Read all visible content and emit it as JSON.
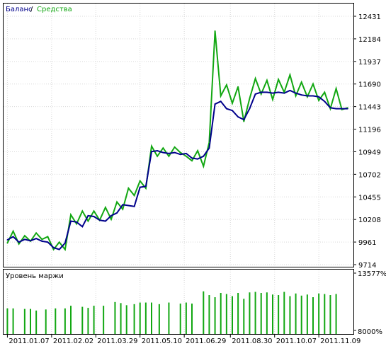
{
  "legend": {
    "balance": "Баланс",
    "separator": "/",
    "equity": "Средства"
  },
  "colors": {
    "balance": "#00008b",
    "equity": "#12a712",
    "margin": "#12a712",
    "grid": "#d9d9d9",
    "frame": "#000000",
    "background": "#ffffff"
  },
  "chart_data": [
    {
      "type": "line",
      "title": "",
      "series": [
        {
          "name": "Баланс",
          "x": [
            2,
            5,
            8,
            11,
            14,
            17,
            20,
            23,
            26,
            29,
            32,
            35,
            38,
            41,
            44,
            47,
            50,
            53,
            56,
            59,
            62,
            65,
            68,
            71,
            74,
            77,
            80,
            83,
            86,
            89,
            92,
            95,
            98,
            101,
            104,
            107,
            110,
            113,
            116,
            119,
            122,
            125,
            128,
            131,
            134,
            137,
            140,
            143,
            146,
            149,
            152,
            155,
            158,
            161,
            164,
            167,
            170,
            173,
            176,
            179
          ],
          "y": [
            9985,
            10020,
            9960,
            9990,
            9975,
            10000,
            9970,
            9960,
            9900,
            9880,
            9950,
            10190,
            10180,
            10130,
            10250,
            10240,
            10200,
            10190,
            10250,
            10280,
            10370,
            10360,
            10350,
            10560,
            10570,
            10950,
            10960,
            10940,
            10930,
            10940,
            10920,
            10930,
            10880,
            10870,
            10900,
            10990,
            11470,
            11500,
            11420,
            11400,
            11330,
            11300,
            11420,
            11580,
            11600,
            11600,
            11590,
            11600,
            11590,
            11620,
            11590,
            11570,
            11560,
            11560,
            11550,
            11500,
            11430,
            11420,
            11420,
            11420
          ]
        },
        {
          "name": "Средства",
          "x": [
            2,
            5,
            8,
            11,
            14,
            17,
            20,
            23,
            26,
            29,
            32,
            35,
            38,
            41,
            44,
            47,
            50,
            53,
            56,
            59,
            62,
            65,
            68,
            71,
            74,
            77,
            80,
            83,
            86,
            89,
            92,
            95,
            98,
            101,
            104,
            107,
            110,
            113,
            116,
            119,
            122,
            125,
            128,
            131,
            134,
            137,
            140,
            143,
            146,
            149,
            152,
            155,
            158,
            161,
            164,
            167,
            170,
            173,
            176,
            179
          ],
          "y": [
            9950,
            10080,
            9940,
            10030,
            9970,
            10060,
            9990,
            10020,
            9880,
            9960,
            9880,
            10260,
            10160,
            10300,
            10190,
            10300,
            10200,
            10340,
            10210,
            10400,
            10320,
            10550,
            10470,
            10630,
            10550,
            11010,
            10900,
            10990,
            10900,
            11000,
            10940,
            10900,
            10850,
            10960,
            10790,
            11050,
            12270,
            11560,
            11680,
            11480,
            11660,
            11280,
            11530,
            11750,
            11580,
            11730,
            11520,
            11740,
            11600,
            11790,
            11560,
            11710,
            11550,
            11690,
            11510,
            11600,
            11420,
            11640,
            11410,
            11430
          ]
        }
      ],
      "x_tick_labels": [
        "2011.01.07",
        "2011.02.02",
        "2011.03.29",
        "2011.05.10",
        "2011.06.29",
        "2011.08.30",
        "2011.10.07",
        "2011.11.09"
      ],
      "x_tick_positions": [
        2,
        25,
        48,
        71,
        94,
        118,
        141,
        164
      ],
      "x_range": [
        0,
        182
      ],
      "y_tick_labels": [
        "12431",
        "12184",
        "11937",
        "11690",
        "11443",
        "11196",
        "10949",
        "10702",
        "10455",
        "10208",
        "9961",
        "9714"
      ],
      "ylim": [
        9714,
        12431
      ],
      "grid": true,
      "legend_position": "top-left",
      "y_axis_side": "right"
    },
    {
      "type": "bar",
      "title": "Уровень маржи",
      "x": [
        2,
        5,
        11,
        14,
        17,
        22,
        27,
        32,
        35,
        41,
        44,
        47,
        52,
        58,
        61,
        64,
        68,
        71,
        74,
        77,
        81,
        86,
        92,
        95,
        98,
        104,
        107,
        110,
        113,
        116,
        119,
        122,
        125,
        128,
        131,
        134,
        137,
        140,
        143,
        146,
        149,
        152,
        155,
        158,
        161,
        164,
        167,
        170,
        173
      ],
      "values": [
        10400,
        10400,
        10350,
        10350,
        10200,
        10300,
        10400,
        10400,
        10650,
        10550,
        10450,
        10650,
        10650,
        11000,
        10900,
        10700,
        10800,
        10950,
        10950,
        10950,
        10800,
        10950,
        10850,
        10950,
        10850,
        12000,
        11650,
        11450,
        11850,
        11750,
        11550,
        11850,
        11300,
        11900,
        11950,
        11850,
        11900,
        11700,
        11650,
        11950,
        11550,
        11800,
        11600,
        11700,
        11450,
        11800,
        11750,
        11650,
        11750
      ],
      "ylim": [
        8000,
        13577
      ],
      "y_tick_labels": [
        "13577%",
        "8000%"
      ],
      "y_axis_side": "right"
    }
  ]
}
